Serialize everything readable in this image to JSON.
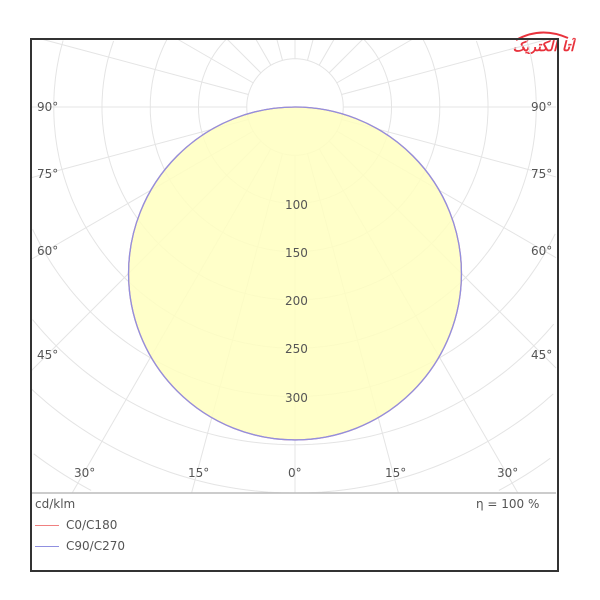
{
  "logo_text": "آتا الکتریک",
  "chart_data": {
    "type": "polar",
    "unit_label": "cd/klm",
    "efficiency_label": "η = 100 %",
    "radial_ticks": [
      100,
      150,
      200,
      250,
      300
    ],
    "radial_tick_labels": [
      "100",
      "150",
      "200",
      "250",
      "300"
    ],
    "grid_step": 50,
    "angle_step_deg": 15,
    "side_angle_labels": [
      "90°",
      "75°",
      "60°",
      "45°"
    ],
    "bottom_angle_labels": [
      "30°",
      "15°",
      "0°",
      "15°",
      "30°"
    ],
    "fill_color": "#ffffc0",
    "series": [
      {
        "name": "C0/C180",
        "color": "#f08080",
        "distribution": "cosine",
        "peak_cd_klm": 345
      },
      {
        "name": "C90/C270",
        "color": "#9090e0",
        "distribution": "cosine",
        "peak_cd_klm": 345
      }
    ]
  }
}
